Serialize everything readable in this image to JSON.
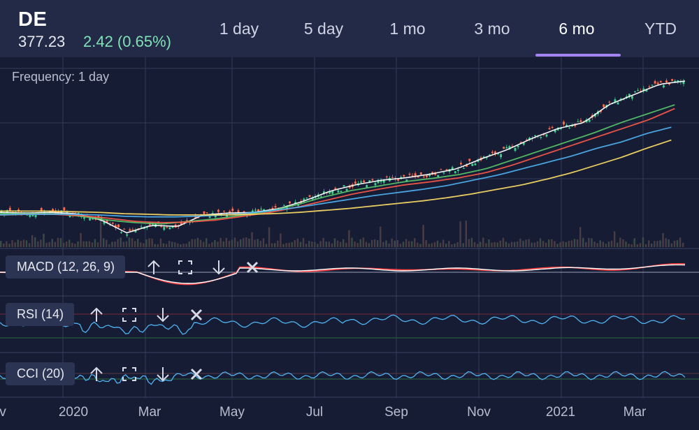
{
  "header": {
    "symbol": "DE",
    "price": "377.23",
    "change": "2.42 (0.65%)",
    "tabs": [
      {
        "label": "1 day",
        "active": false
      },
      {
        "label": "5 day",
        "active": false
      },
      {
        "label": "1 mo",
        "active": false
      },
      {
        "label": "3 mo",
        "active": false
      },
      {
        "label": "6 mo",
        "active": true
      },
      {
        "label": "YTD",
        "active": false
      }
    ]
  },
  "chart": {
    "frequency": "Frequency: 1 day"
  },
  "indicators": {
    "macd": "MACD (12, 26, 9)",
    "rsi": "RSI (14)",
    "cci": "CCI (20)"
  },
  "chart_data": {
    "type": "line",
    "x_ticks": [
      "v",
      "2020",
      "Mar",
      "May",
      "Jul",
      "Sep",
      "Nov",
      "2021",
      "Mar"
    ],
    "series": [
      {
        "values": [
          172,
          171,
          172,
          170,
          160,
          140,
          152,
          150,
          168,
          171,
          172,
          178,
          190,
          205,
          215,
          222,
          226,
          232,
          240,
          256,
          270,
          288,
          303,
          312,
          340,
          356,
          372,
          377
        ]
      },
      {
        "values": [
          170,
          170,
          170,
          166,
          160,
          156,
          154,
          158,
          162,
          168,
          174,
          184,
          196,
          206,
          213,
          220,
          225,
          231,
          240,
          254,
          268,
          282,
          296,
          312,
          326,
          340
        ]
      },
      {
        "values": [
          168,
          169,
          169,
          167,
          163,
          158,
          156,
          157,
          160,
          166,
          172,
          180,
          190,
          200,
          208,
          215,
          220,
          226,
          234,
          246,
          260,
          274,
          288,
          302,
          316,
          334
        ]
      },
      {
        "values": [
          168,
          169,
          169,
          169,
          168,
          166,
          165,
          165,
          166,
          168,
          171,
          175,
          180,
          186,
          192,
          198,
          203,
          208,
          214,
          222,
          230,
          240,
          250,
          260,
          272,
          282,
          295,
          305
        ]
      },
      {
        "values": [
          174,
          174,
          174,
          173,
          172,
          170,
          169,
          168,
          168,
          168,
          169,
          170,
          172,
          175,
          178,
          182,
          186,
          190,
          195,
          201,
          208,
          215,
          224,
          234,
          246,
          258,
          272,
          285
        ]
      }
    ],
    "colors": [
      "#ffffff",
      "#58c96a",
      "#ff5a4a",
      "#4fb3f2",
      "#ffe066"
    ],
    "grid": true,
    "up_color": "#3fcf8e",
    "down_color": "#ff6b4a"
  }
}
